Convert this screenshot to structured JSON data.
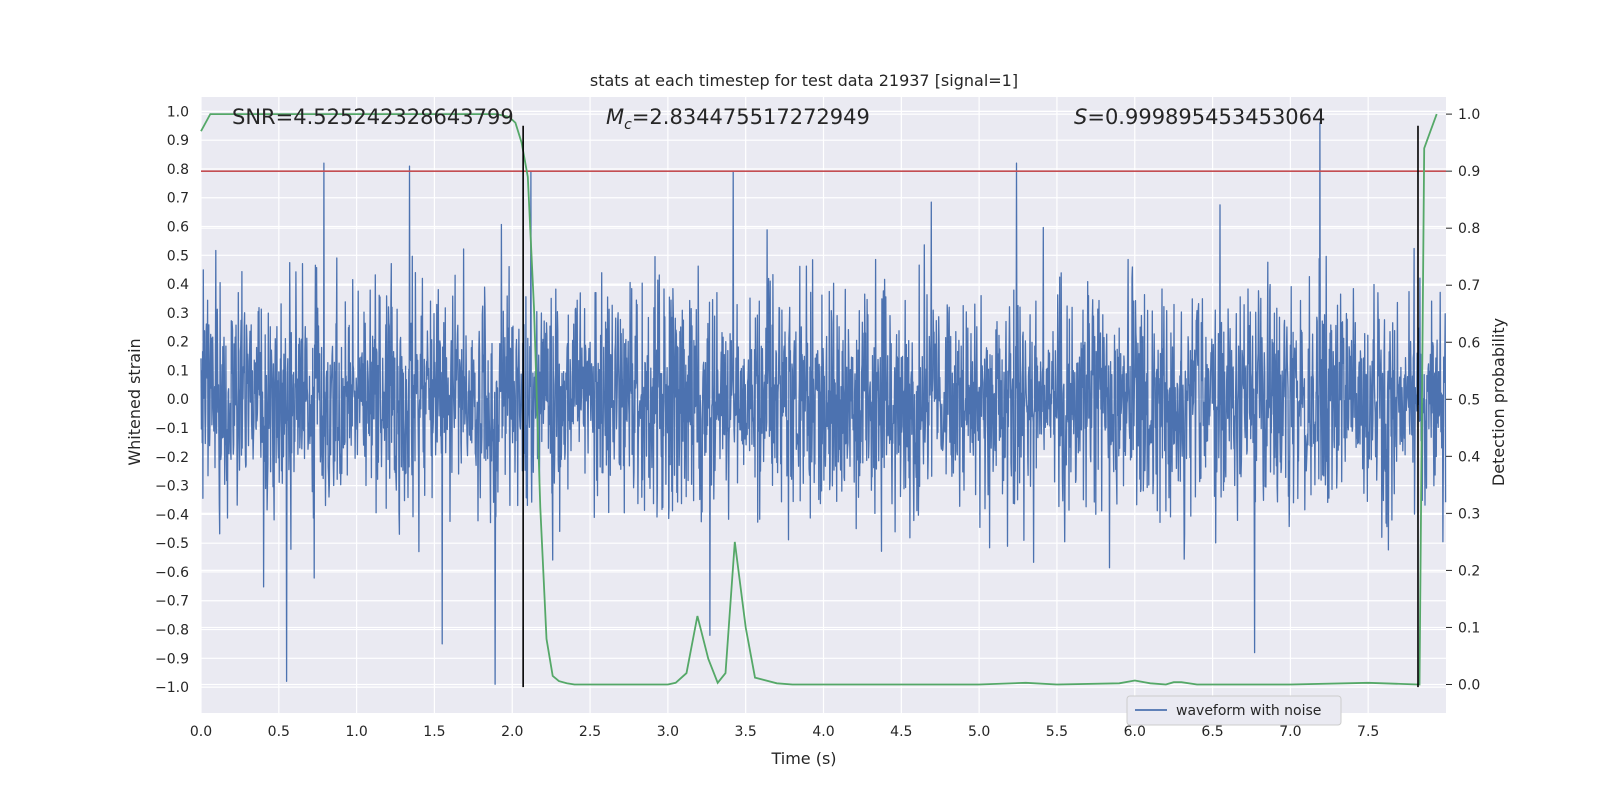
{
  "chart_data": {
    "type": "line",
    "title": "stats at each timestep for test data 21937 [signal=1]",
    "xlabel": "Time (s)",
    "ylabel": "Whitened strain",
    "y2label": "Detection probability",
    "xlim": [
      0.0,
      8.0
    ],
    "ylim": [
      -1.09,
      1.05
    ],
    "y2lim": [
      -0.05,
      1.03
    ],
    "x_ticks": [
      "0.0",
      "0.5",
      "1.0",
      "1.5",
      "2.0",
      "2.5",
      "3.0",
      "3.5",
      "4.0",
      "4.5",
      "5.0",
      "5.5",
      "6.0",
      "6.5",
      "7.0",
      "7.5"
    ],
    "y_ticks": [
      "1.0",
      "0.9",
      "0.8",
      "0.7",
      "0.6",
      "0.5",
      "0.4",
      "0.3",
      "0.2",
      "0.1",
      "0.0",
      "-0.1",
      "-0.2",
      "-0.3",
      "-0.4",
      "-0.5",
      "-0.6",
      "-0.7",
      "-0.8",
      "-0.9",
      "-1.0"
    ],
    "y2_ticks": [
      "1.0",
      "0.9",
      "0.8",
      "0.7",
      "0.6",
      "0.5",
      "0.4",
      "0.3",
      "0.2",
      "0.1",
      "0.0"
    ],
    "annotations": {
      "snr": "SNR=4.525242328643799",
      "mc_symbol": "M",
      "mc_subscript": "c",
      "mc_value": "=2.834475517272949",
      "s_symbol": "S",
      "s_value": "=0.999895453453064"
    },
    "legend": {
      "label": "waveform with noise",
      "location": "lower right"
    },
    "threshold": {
      "y2": 0.9,
      "color": "#c44e52"
    },
    "vertical_markers": {
      "x": [
        2.07,
        7.82
      ],
      "y_range": [
        -1.0,
        0.95
      ],
      "color": "#000000"
    },
    "series": [
      {
        "name": "waveform with noise",
        "axis": "left",
        "color": "#4c72b0",
        "sample_rate": 400,
        "duration_s": 8.0,
        "noise_sigma": 0.19,
        "clip": [
          -1.0,
          1.0
        ],
        "seed": 21937,
        "notable_peaks": [
          {
            "x": 0.55,
            "y": -0.98
          },
          {
            "x": 0.79,
            "y": 0.82
          },
          {
            "x": 1.34,
            "y": 0.81
          },
          {
            "x": 1.89,
            "y": -0.99
          },
          {
            "x": 2.12,
            "y": 0.79
          },
          {
            "x": 3.42,
            "y": 0.79
          },
          {
            "x": 5.24,
            "y": 0.82
          },
          {
            "x": 7.19,
            "y": 0.96
          },
          {
            "x": 6.77,
            "y": -0.88
          },
          {
            "x": 3.27,
            "y": -0.82
          },
          {
            "x": 1.55,
            "y": -0.85
          }
        ]
      },
      {
        "name": "detection probability",
        "axis": "right",
        "color": "#55a868",
        "x": [
          0.0,
          0.06,
          0.5,
          1.0,
          1.5,
          1.9,
          1.98,
          2.02,
          2.06,
          2.1,
          2.14,
          2.18,
          2.22,
          2.26,
          2.3,
          2.35,
          2.4,
          2.5,
          3.0,
          3.05,
          3.12,
          3.19,
          3.26,
          3.32,
          3.37,
          3.43,
          3.5,
          3.56,
          3.7,
          3.8,
          4.0,
          4.5,
          5.0,
          5.3,
          5.5,
          5.9,
          6.0,
          6.1,
          6.2,
          6.25,
          6.3,
          6.4,
          6.5,
          7.0,
          7.5,
          7.82,
          7.83,
          7.86,
          7.9,
          7.94
        ],
        "y": [
          0.97,
          1.0,
          1.0,
          1.0,
          1.0,
          1.0,
          0.995,
          0.985,
          0.95,
          0.89,
          0.66,
          0.31,
          0.08,
          0.015,
          0.006,
          0.002,
          0.0,
          0.0,
          0.0,
          0.003,
          0.02,
          0.12,
          0.045,
          0.003,
          0.02,
          0.25,
          0.1,
          0.012,
          0.002,
          0.0,
          0.0,
          0.0,
          0.0,
          0.003,
          0.0,
          0.002,
          0.007,
          0.002,
          0.0,
          0.004,
          0.004,
          0.0,
          0.0,
          0.0,
          0.003,
          0.0,
          0.0,
          0.94,
          0.97,
          1.0
        ]
      }
    ]
  }
}
